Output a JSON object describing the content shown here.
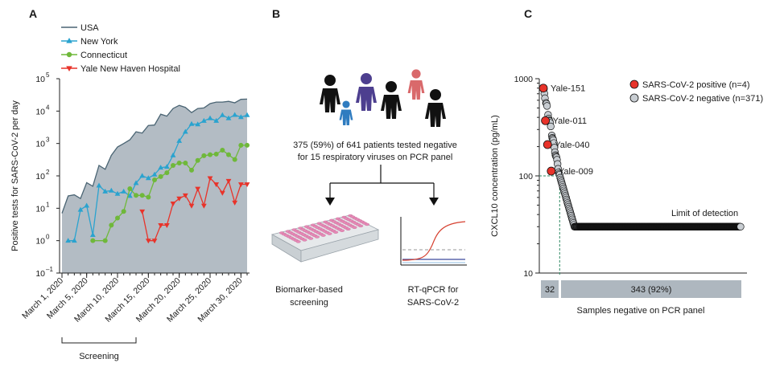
{
  "figure": {
    "panel_a_letter": "A",
    "panel_b_letter": "B",
    "panel_c_letter": "C"
  },
  "chart_data": [
    {
      "type": "line",
      "panel": "A",
      "ylabel": "Positive tests for SARS-CoV-2 per day",
      "yscale": "log10",
      "ylim_exponent": [
        -1,
        5
      ],
      "y_ticks": [
        {
          "base": "10",
          "exp": "5"
        },
        {
          "base": "10",
          "exp": "4"
        },
        {
          "base": "10",
          "exp": "3"
        },
        {
          "base": "10",
          "exp": "2"
        },
        {
          "base": "10",
          "exp": "1"
        },
        {
          "base": "10",
          "exp": "0"
        },
        {
          "base": "10",
          "exp": "–1"
        }
      ],
      "x_day_range": [
        1,
        31
      ],
      "x_ticks": [
        "March 1, 2020",
        "March 5, 2020",
        "March 10, 2020",
        "March 15, 2020",
        "March 20, 2020",
        "March 25, 2020",
        "March 30, 2020"
      ],
      "x_tick_days": [
        1,
        5,
        10,
        15,
        20,
        25,
        30
      ],
      "bracket_label": "Screening",
      "bracket_days": [
        1,
        13
      ],
      "series": [
        {
          "name": "USA",
          "color": "#4a6473",
          "fill": "#b3bcc4",
          "x": [
            1,
            2,
            3,
            4,
            5,
            6,
            7,
            8,
            9,
            10,
            11,
            12,
            13,
            14,
            15,
            16,
            17,
            18,
            19,
            20,
            21,
            22,
            23,
            24,
            25,
            26,
            27,
            28,
            29,
            30,
            31
          ],
          "y": [
            7,
            24,
            26,
            20,
            62,
            48,
            210,
            160,
            430,
            780,
            1000,
            1300,
            2300,
            2100,
            3600,
            3700,
            8000,
            7000,
            12000,
            15000,
            13000,
            9000,
            12000,
            12500,
            17000,
            19000,
            19000,
            20000,
            18000,
            23000,
            23500
          ]
        },
        {
          "name": "New York",
          "color": "#2aa3cf",
          "marker": "triangle",
          "x": [
            2,
            3,
            4,
            5,
            6,
            7,
            8,
            9,
            10,
            11,
            12,
            13,
            14,
            15,
            16,
            17,
            18,
            19,
            20,
            21,
            22,
            23,
            24,
            25,
            26,
            27,
            28,
            29,
            30,
            31
          ],
          "y": [
            1,
            1,
            9,
            12,
            1.5,
            50,
            33,
            35,
            28,
            33,
            24,
            60,
            100,
            85,
            110,
            180,
            190,
            430,
            1200,
            2300,
            4000,
            3900,
            5000,
            6000,
            5000,
            7500,
            6000,
            7600,
            6500,
            7500
          ]
        },
        {
          "name": "Connecticut",
          "color": "#6fb83a",
          "marker": "circle",
          "x": [
            6,
            8,
            9,
            10,
            11,
            12,
            13,
            14,
            15,
            16,
            17,
            18,
            19,
            20,
            21,
            22,
            23,
            24,
            25,
            26,
            27,
            28,
            29,
            30,
            31
          ],
          "y": [
            1,
            1,
            3,
            5,
            8,
            40,
            25,
            25,
            22,
            75,
            95,
            125,
            210,
            250,
            250,
            150,
            300,
            420,
            450,
            470,
            620,
            450,
            320,
            880,
            880
          ]
        },
        {
          "name": "Yale New Haven Hospital",
          "color": "#e8332a",
          "marker": "triangle-down",
          "x": [
            14,
            15,
            16,
            17,
            18,
            19,
            20,
            21,
            22,
            23,
            24,
            25,
            26,
            27,
            28,
            29,
            30,
            31
          ],
          "y": [
            8,
            1,
            1,
            3,
            3,
            14,
            20,
            25,
            12,
            40,
            12,
            85,
            55,
            30,
            70,
            15,
            55,
            55
          ]
        }
      ]
    },
    {
      "type": "scatter",
      "panel": "C",
      "ylabel": "CXCL10 concentration (pg/mL)",
      "xlabel": "Samples negative on PCR panel",
      "yscale": "log10",
      "ylim": [
        10,
        1000
      ],
      "y_ticks": [
        "1000",
        "100",
        "10"
      ],
      "y_tick_values": [
        1000,
        100,
        10
      ],
      "n_samples": 375,
      "n_above_threshold": 32,
      "threshold_value": 100,
      "limit_of_detection": 30,
      "limit_label": "Limit of detection",
      "legend": [
        {
          "label": "SARS-CoV-2 positive (n=4)",
          "color": "#e8332a"
        },
        {
          "label": "SARS-CoV-2 negative (n=371)",
          "color": "#c8cdd2"
        }
      ],
      "positives": [
        {
          "label": "Yale-151",
          "rank": 1,
          "value": 800
        },
        {
          "label": "Yale-011",
          "rank": 5,
          "value": 370
        },
        {
          "label": "Yale-040",
          "rank": 9,
          "value": 210
        },
        {
          "label": "Yale-009",
          "rank": 16,
          "value": 112
        }
      ],
      "bar_left_label": "32",
      "bar_right_label": "343 (92%)",
      "bar_color": "#aeb7bf"
    }
  ],
  "panel_b": {
    "text_line1": "375 (59%) of 641 patients tested negative",
    "text_line2": "for 15 respiratory viruses on PCR panel",
    "left_label_line1": "Biomarker-based",
    "left_label_line2": "screening",
    "right_label_line1": "RT-qPCR for",
    "right_label_line2": "SARS-CoV-2",
    "person_colors": [
      "#111111",
      "#2f7cc0",
      "#4d3f8f",
      "#111111",
      "#d9696b",
      "#111111"
    ]
  }
}
